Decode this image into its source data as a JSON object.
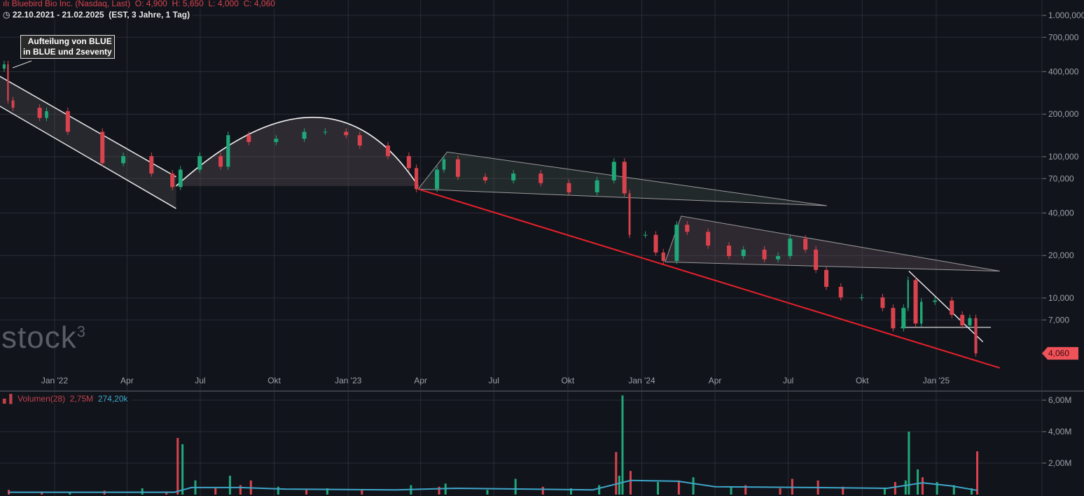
{
  "header": {
    "icon": "candlestick-icon",
    "instrument": "Bluebird Bio Inc. (Nasdaq, Last)",
    "open": "O: 4,900",
    "high": "H: 5,650",
    "low": "L: 4,000",
    "close": "C: 4,060",
    "clock_icon": "clock-icon",
    "range": "22.10.2021 - 21.02.2025",
    "range_info": "(EST, 3 Jahre, 1 Tag)"
  },
  "annotation": {
    "line1": "Aufteilung von BLUE",
    "line2": "in BLUE und 2seventy"
  },
  "logo": "stock3",
  "volume_header": {
    "icon": "bar-chart-icon",
    "label": "Volumen(28)",
    "value": "2,75M",
    "ma_value": "274,20k"
  },
  "colors": {
    "background": "#12141c",
    "up": "#1fa878",
    "down": "#d9434d",
    "support_line": "#e8202a",
    "ma_line": "#3ea7c9",
    "last_price_bg": "#f0525a"
  },
  "chart_data": [
    {
      "type": "candlestick",
      "scale": "log",
      "grid": true,
      "ylim": [
        2.5,
        1100
      ],
      "y_ticks": [
        {
          "v": 1000,
          "label": "1.000,000"
        },
        {
          "v": 700,
          "label": "700,000"
        },
        {
          "v": 400,
          "label": "400,000"
        },
        {
          "v": 200,
          "label": "200,000"
        },
        {
          "v": 100,
          "label": "100,000"
        },
        {
          "v": 70,
          "label": "70,000"
        },
        {
          "v": 40,
          "label": "40,000"
        },
        {
          "v": 20,
          "label": "20,000"
        },
        {
          "v": 10,
          "label": "10,000"
        },
        {
          "v": 7,
          "label": "7,000"
        }
      ],
      "x_ticks": [
        {
          "d": "2022-01-01",
          "label": "Jan '22"
        },
        {
          "d": "2022-04-01",
          "label": "Apr"
        },
        {
          "d": "2022-07-01",
          "label": "Jul"
        },
        {
          "d": "2022-10-01",
          "label": "Okt"
        },
        {
          "d": "2023-01-01",
          "label": "Jan '23"
        },
        {
          "d": "2023-04-01",
          "label": "Apr"
        },
        {
          "d": "2023-07-01",
          "label": "Jul"
        },
        {
          "d": "2023-10-01",
          "label": "Okt"
        },
        {
          "d": "2024-01-01",
          "label": "Jan '24"
        },
        {
          "d": "2024-04-01",
          "label": "Apr"
        },
        {
          "d": "2024-07-01",
          "label": "Jul"
        },
        {
          "d": "2024-10-01",
          "label": "Okt"
        },
        {
          "d": "2025-01-01",
          "label": "Jan '25"
        }
      ],
      "last_price": {
        "value": 4.06,
        "label": "4,060"
      },
      "closes": [
        [
          "2021-10-25",
          420
        ],
        [
          "2021-11-01",
          450
        ],
        [
          "2021-11-05",
          250
        ],
        [
          "2021-11-12",
          222
        ],
        [
          "2021-12-16",
          188
        ],
        [
          "2021-12-24",
          210
        ],
        [
          "2022-01-20",
          150
        ],
        [
          "2022-03-04",
          90
        ],
        [
          "2022-03-30",
          101
        ],
        [
          "2022-05-04",
          76
        ],
        [
          "2022-05-30",
          61
        ],
        [
          "2022-06-09",
          81
        ],
        [
          "2022-07-03",
          101
        ],
        [
          "2022-07-29",
          85
        ],
        [
          "2022-08-07",
          142
        ],
        [
          "2022-09-02",
          127
        ],
        [
          "2022-10-06",
          134
        ],
        [
          "2022-11-10",
          150
        ],
        [
          "2022-12-06",
          150
        ],
        [
          "2023-01-01",
          142
        ],
        [
          "2023-01-18",
          120
        ],
        [
          "2023-02-22",
          101
        ],
        [
          "2023-03-20",
          83
        ],
        [
          "2023-03-29",
          59
        ],
        [
          "2023-04-24",
          81
        ],
        [
          "2023-05-02",
          96
        ],
        [
          "2023-05-20",
          72
        ],
        [
          "2023-06-23",
          68
        ],
        [
          "2023-07-28",
          76
        ],
        [
          "2023-08-31",
          65
        ],
        [
          "2023-10-05",
          56
        ],
        [
          "2023-11-09",
          68
        ],
        [
          "2023-11-30",
          92
        ],
        [
          "2023-12-13",
          55
        ],
        [
          "2023-12-18",
          28
        ],
        [
          "2024-01-08",
          28
        ],
        [
          "2024-01-21",
          21
        ],
        [
          "2024-01-30",
          18.3
        ],
        [
          "2024-02-16",
          33
        ],
        [
          "2024-02-29",
          29.4
        ],
        [
          "2024-03-26",
          23.5
        ],
        [
          "2024-04-21",
          19.8
        ],
        [
          "2024-05-09",
          22
        ],
        [
          "2024-06-04",
          18.8
        ],
        [
          "2024-06-21",
          19.8
        ],
        [
          "2024-07-06",
          26.3
        ],
        [
          "2024-07-25",
          22
        ],
        [
          "2024-08-07",
          15.8
        ],
        [
          "2024-08-20",
          12
        ],
        [
          "2024-09-07",
          10.1
        ],
        [
          "2024-10-03",
          10.1
        ],
        [
          "2024-10-29",
          8.5
        ],
        [
          "2024-11-11",
          6.1
        ],
        [
          "2024-11-24",
          8.5
        ],
        [
          "2024-11-28",
          13.4
        ],
        [
          "2024-12-09",
          6.6
        ],
        [
          "2024-12-15",
          9.4
        ],
        [
          "2025-01-02",
          9.6
        ],
        [
          "2025-01-23",
          7.6
        ],
        [
          "2025-02-05",
          6.4
        ],
        [
          "2025-02-14",
          7.2
        ],
        [
          "2025-02-21",
          4.06
        ]
      ],
      "drawings": [
        {
          "kind": "channel",
          "upper": [
            [
              "2021-10-18",
              390
            ],
            [
              "2022-06-01",
              72
            ]
          ],
          "lower": [
            [
              "2021-10-18",
              240
            ],
            [
              "2022-06-01",
              43
            ]
          ]
        },
        {
          "kind": "arc",
          "start": [
            "2022-06-01",
            62
          ],
          "peak": [
            "2022-11-18",
            190
          ],
          "end": [
            "2023-03-29",
            62
          ]
        },
        {
          "kind": "triangle",
          "fill": "green",
          "points": [
            [
              "2023-03-29",
              59
            ],
            [
              "2023-05-04",
              108
            ],
            [
              "2024-08-18",
              45
            ]
          ]
        },
        {
          "kind": "triangle",
          "fill": "pink",
          "points": [
            [
              "2024-01-30",
              18
            ],
            [
              "2024-02-19",
              38
            ],
            [
              "2025-03-21",
              15.5
            ]
          ]
        },
        {
          "kind": "support",
          "from": [
            "2023-03-29",
            59
          ],
          "to": [
            "2025-03-21",
            3.2
          ]
        },
        {
          "kind": "line",
          "from": [
            "2024-11-28",
            15.5
          ],
          "to": [
            "2025-02-28",
            4.9
          ]
        },
        {
          "kind": "hline",
          "from": [
            "2024-11-18",
            6.2
          ],
          "to": [
            "2025-03-10",
            6.2
          ]
        }
      ]
    },
    {
      "type": "bar",
      "name": "Volumen(28)",
      "ylim": [
        0,
        6.5
      ],
      "y_ticks": [
        {
          "v": 6,
          "label": "6,00M"
        },
        {
          "v": 4,
          "label": "4,00M"
        },
        {
          "v": 2,
          "label": "2,00M"
        }
      ],
      "bars": [
        [
          "2021-11-05",
          0.3,
          "down"
        ],
        [
          "2021-12-16",
          0.2,
          "down"
        ],
        [
          "2022-01-20",
          0.15,
          "up"
        ],
        [
          "2022-03-04",
          0.25,
          "down"
        ],
        [
          "2022-04-20",
          0.4,
          "up"
        ],
        [
          "2022-05-20",
          0.2,
          "down"
        ],
        [
          "2022-06-03",
          3.6,
          "down"
        ],
        [
          "2022-06-09",
          3.2,
          "up"
        ],
        [
          "2022-06-25",
          0.9,
          "up"
        ],
        [
          "2022-07-20",
          0.4,
          "down"
        ],
        [
          "2022-08-07",
          1.2,
          "up"
        ],
        [
          "2022-08-20",
          0.6,
          "down"
        ],
        [
          "2022-09-02",
          0.9,
          "down"
        ],
        [
          "2022-10-06",
          0.5,
          "up"
        ],
        [
          "2022-11-10",
          0.3,
          "down"
        ],
        [
          "2022-12-06",
          0.4,
          "up"
        ],
        [
          "2023-01-18",
          0.3,
          "down"
        ],
        [
          "2023-03-20",
          0.6,
          "up"
        ],
        [
          "2023-04-24",
          0.5,
          "down"
        ],
        [
          "2023-05-02",
          0.7,
          "up"
        ],
        [
          "2023-06-23",
          0.3,
          "up"
        ],
        [
          "2023-07-28",
          1.0,
          "up"
        ],
        [
          "2023-08-31",
          0.5,
          "down"
        ],
        [
          "2023-10-05",
          0.4,
          "up"
        ],
        [
          "2023-11-09",
          0.6,
          "up"
        ],
        [
          "2023-11-30",
          2.7,
          "down"
        ],
        [
          "2023-12-04",
          1.2,
          "up"
        ],
        [
          "2023-12-08",
          6.3,
          "up"
        ],
        [
          "2023-12-18",
          1.5,
          "down"
        ],
        [
          "2024-01-21",
          0.8,
          "up"
        ],
        [
          "2024-02-16",
          0.9,
          "down"
        ],
        [
          "2024-03-05",
          1.1,
          "up"
        ],
        [
          "2024-04-21",
          0.5,
          "up"
        ],
        [
          "2024-05-09",
          0.6,
          "down"
        ],
        [
          "2024-06-21",
          0.4,
          "down"
        ],
        [
          "2024-07-06",
          1.0,
          "down"
        ],
        [
          "2024-08-07",
          0.9,
          "down"
        ],
        [
          "2024-09-07",
          0.5,
          "down"
        ],
        [
          "2024-10-29",
          0.4,
          "up"
        ],
        [
          "2024-11-11",
          0.8,
          "down"
        ],
        [
          "2024-11-24",
          0.9,
          "up"
        ],
        [
          "2024-11-28",
          4.0,
          "up"
        ],
        [
          "2024-12-09",
          1.6,
          "up"
        ],
        [
          "2024-12-15",
          1.1,
          "down"
        ],
        [
          "2025-01-02",
          0.8,
          "up"
        ],
        [
          "2025-01-23",
          0.6,
          "up"
        ],
        [
          "2025-02-14",
          0.4,
          "up"
        ],
        [
          "2025-02-21",
          2.75,
          "down"
        ]
      ],
      "ma": [
        [
          "2021-11-05",
          0.15
        ],
        [
          "2022-05-30",
          0.15
        ],
        [
          "2022-06-20",
          0.45
        ],
        [
          "2022-08-20",
          0.45
        ],
        [
          "2022-10-15",
          0.35
        ],
        [
          "2023-03-01",
          0.3
        ],
        [
          "2023-05-15",
          0.4
        ],
        [
          "2023-11-01",
          0.3
        ],
        [
          "2023-12-18",
          0.9
        ],
        [
          "2024-02-15",
          0.85
        ],
        [
          "2024-04-01",
          0.5
        ],
        [
          "2024-08-01",
          0.45
        ],
        [
          "2024-11-01",
          0.4
        ],
        [
          "2024-12-15",
          0.75
        ],
        [
          "2025-01-20",
          0.55
        ],
        [
          "2025-02-21",
          0.27
        ]
      ]
    }
  ]
}
